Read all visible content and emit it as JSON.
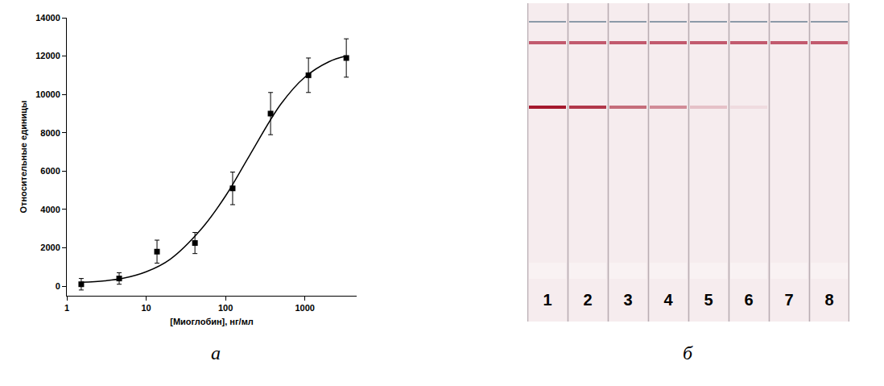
{
  "chart_data": {
    "type": "scatter",
    "x_label": "[Миоглобин], нг/мл",
    "y_label": "Относительные единицы",
    "log": "x",
    "grid": false,
    "xlim": [
      1,
      4500
    ],
    "xticks": [
      1,
      10,
      100,
      1000
    ],
    "ylim": [
      -500,
      14000
    ],
    "yticks": [
      0,
      2000,
      4000,
      6000,
      8000,
      10000,
      12000,
      14000
    ],
    "series": [
      {
        "type": "scatter",
        "marker": "square",
        "color": "#000000",
        "x": [
          1.52,
          4.57,
          13.7,
          41.2,
          123,
          370,
          1111,
          3333
        ],
        "values": [
          100,
          400,
          1800,
          2250,
          5100,
          9000,
          11000,
          11900
        ],
        "errors": [
          300,
          300,
          600,
          550,
          850,
          1100,
          900,
          1000
        ]
      },
      {
        "type": "line",
        "line_style": "solid",
        "color": "#000000",
        "x": [
          1.5,
          3,
          5,
          10,
          20,
          50,
          100,
          200,
          500,
          1000,
          2000,
          3300
        ],
        "values": [
          200,
          280,
          400,
          750,
          1400,
          3000,
          4700,
          6800,
          9500,
          10900,
          11700,
          12000
        ]
      }
    ]
  },
  "panel_letters": [
    "а",
    "б"
  ],
  "strip_panel": {
    "strips": [
      {
        "label": "1",
        "test_line": 1.0
      },
      {
        "label": "2",
        "test_line": 0.85
      },
      {
        "label": "3",
        "test_line": 0.6
      },
      {
        "label": "4",
        "test_line": 0.45
      },
      {
        "label": "5",
        "test_line": 0.2
      },
      {
        "label": "6",
        "test_line": 0.08
      },
      {
        "label": "7",
        "test_line": 0
      },
      {
        "label": "8",
        "test_line": 0
      }
    ]
  }
}
